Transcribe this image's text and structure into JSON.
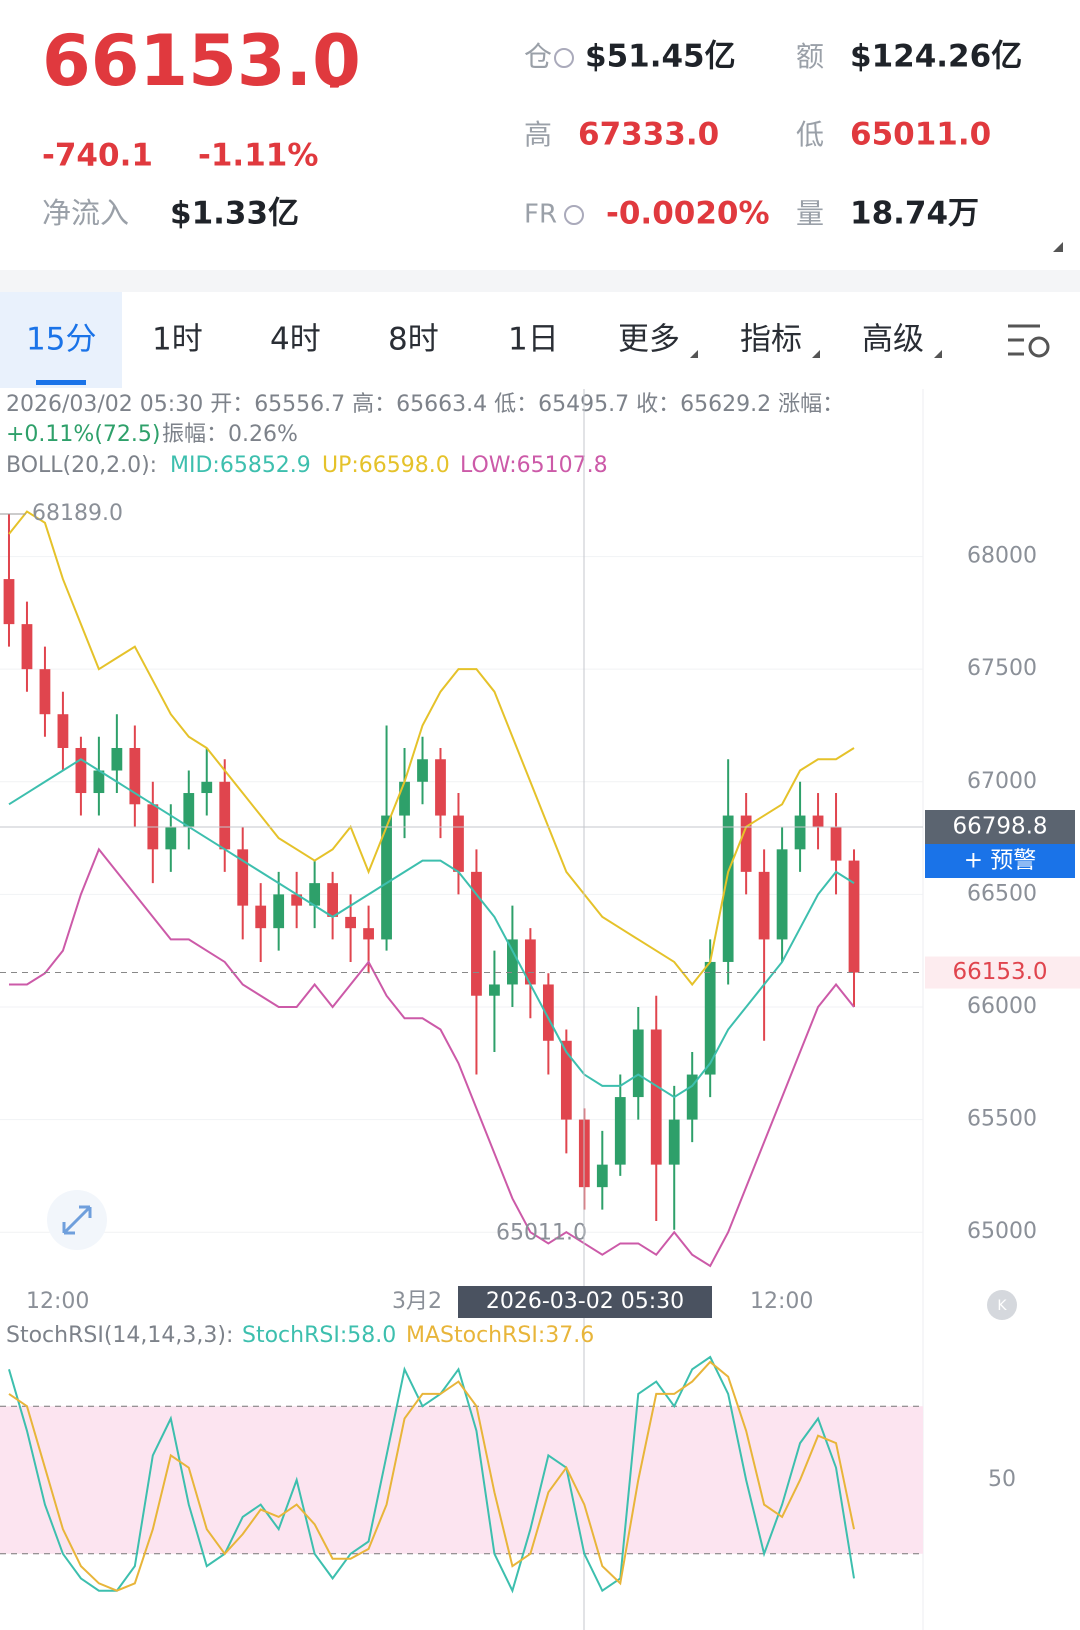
{
  "header": {
    "price": "66153.0",
    "change": "-740.1",
    "change_pct": "-1.11%",
    "inflow_label": "净流入",
    "inflow": "$1.33亿",
    "stats": [
      {
        "label": "仓",
        "value": "$51.45亿"
      },
      {
        "label": "额",
        "value": "$124.26亿"
      },
      {
        "label": "高",
        "value": "67333.0"
      },
      {
        "label": "低",
        "value": "65011.0"
      },
      {
        "label": "FR",
        "value": "-0.0020%"
      },
      {
        "label": "量",
        "value": "18.74万"
      }
    ]
  },
  "tabs": [
    "15分",
    "1时",
    "4时",
    "8时",
    "1日",
    "更多",
    "指标",
    "高级"
  ],
  "info": {
    "line1": "2026/03/02 05:30 开：65556.7 高：65663.4 低：65495.7 收：65629.2 涨幅：",
    "change": "+0.11%(72.5)",
    "amplitude": "振幅：0.26%",
    "boll_title": "BOLL(20,2.0):"
  },
  "markers": {
    "high": "68189.0",
    "low": "65011.0",
    "cursor_price": "66798.8",
    "alert": "+ 预警",
    "last_price": "66153.0"
  },
  "x_labels": [
    "12:00",
    "3月2",
    "2026-03-02 05:30",
    "12:00"
  ],
  "chart_data": [
    {
      "type": "candlestick",
      "up_color": "#2ea06a",
      "down_color": "#e0454e",
      "ylim": [
        64770,
        68300
      ],
      "yticks": [
        65000,
        65500,
        66000,
        66500,
        67000,
        67500,
        68000
      ],
      "grid": true,
      "open": [
        67900,
        67700,
        67500,
        67300,
        67150,
        66950,
        67050,
        67150,
        66900,
        66700,
        66800,
        66950,
        67000,
        66700,
        66450,
        66350,
        66500,
        66450,
        66550,
        66400,
        66350,
        66300,
        66850,
        67000,
        67100,
        66850,
        66600,
        66050,
        66100,
        66300,
        66100,
        65850,
        65500,
        65200,
        65300,
        65600,
        65900,
        65300,
        65500,
        65700,
        66200,
        66850,
        66600,
        66300,
        66700,
        66850,
        66800,
        66650
      ],
      "high": [
        68189,
        67800,
        67600,
        67400,
        67200,
        67200,
        67300,
        67250,
        67000,
        66900,
        67050,
        67150,
        67100,
        66800,
        66550,
        66600,
        66600,
        66650,
        66600,
        66500,
        66450,
        67250,
        67150,
        67200,
        67150,
        66950,
        66700,
        66250,
        66450,
        66350,
        66150,
        65900,
        65550,
        65450,
        65700,
        66000,
        66050,
        65650,
        65800,
        66300,
        67100,
        66950,
        66700,
        66800,
        67000,
        66950,
        66950,
        66700
      ],
      "low": [
        67600,
        67400,
        67200,
        67050,
        66850,
        66850,
        66950,
        66800,
        66550,
        66600,
        66700,
        66850,
        66600,
        66300,
        66200,
        66250,
        66350,
        66350,
        66300,
        66200,
        66150,
        66250,
        66750,
        66900,
        66750,
        66500,
        65700,
        65800,
        66000,
        65950,
        65700,
        65350,
        65100,
        65100,
        65250,
        65500,
        65050,
        65011,
        65400,
        65600,
        66100,
        66500,
        65850,
        66200,
        66600,
        66700,
        66500,
        66000
      ],
      "close": [
        67700,
        67500,
        67300,
        67150,
        66950,
        67050,
        67150,
        66900,
        66700,
        66800,
        66950,
        67000,
        66700,
        66450,
        66350,
        66500,
        66450,
        66550,
        66400,
        66350,
        66300,
        66850,
        67000,
        67100,
        66850,
        66600,
        66050,
        66100,
        66300,
        66100,
        65850,
        65500,
        65200,
        65300,
        65600,
        65900,
        65300,
        65500,
        65700,
        66200,
        66850,
        66600,
        66300,
        66700,
        66850,
        66800,
        66650,
        66153
      ],
      "series": [
        {
          "name": "MID:65852.9",
          "color": "#3dbfae",
          "values": [
            66900,
            66950,
            67000,
            67050,
            67100,
            67050,
            67000,
            66950,
            66900,
            66850,
            66800,
            66750,
            66700,
            66650,
            66600,
            66550,
            66500,
            66450,
            66400,
            66450,
            66500,
            66550,
            66600,
            66650,
            66650,
            66600,
            66500,
            66400,
            66250,
            66100,
            65950,
            65800,
            65700,
            65650,
            65650,
            65700,
            65650,
            65600,
            65650,
            65750,
            65900,
            66000,
            66100,
            66200,
            66350,
            66500,
            66600,
            66550
          ]
        },
        {
          "name": "UP:66598.0",
          "color": "#e5c22a",
          "values": [
            68100,
            68200,
            68150,
            67900,
            67700,
            67500,
            67550,
            67600,
            67450,
            67300,
            67200,
            67150,
            67050,
            66950,
            66850,
            66750,
            66700,
            66650,
            66700,
            66800,
            66600,
            66800,
            67000,
            67250,
            67400,
            67500,
            67500,
            67400,
            67200,
            67000,
            66800,
            66600,
            66500,
            66400,
            66350,
            66300,
            66250,
            66200,
            66100,
            66200,
            66600,
            66800,
            66850,
            66900,
            67050,
            67100,
            67100,
            67150
          ]
        },
        {
          "name": "LOW:65107.8",
          "color": "#cc5aa8",
          "values": [
            66100,
            66100,
            66150,
            66250,
            66500,
            66700,
            66600,
            66500,
            66400,
            66300,
            66300,
            66250,
            66200,
            66100,
            66050,
            66000,
            66000,
            66100,
            66000,
            66100,
            66200,
            66050,
            65950,
            65950,
            65900,
            65750,
            65550,
            65350,
            65150,
            65000,
            64950,
            65000,
            64950,
            64900,
            64950,
            64950,
            64900,
            65000,
            64900,
            64850,
            65000,
            65200,
            65400,
            65600,
            65800,
            66000,
            66100,
            66000
          ]
        }
      ]
    },
    {
      "type": "line",
      "title": "StochRSI(14,14,3,3):",
      "ylim": [
        0,
        100
      ],
      "yticks": [
        50
      ],
      "band_lines": [
        20,
        80
      ],
      "band_color": "#fce4f0",
      "series": [
        {
          "name": "StochRSI:58.0",
          "color": "#3dbfae",
          "values": [
            95,
            70,
            40,
            20,
            10,
            5,
            5,
            15,
            60,
            75,
            40,
            15,
            20,
            35,
            40,
            30,
            50,
            20,
            10,
            20,
            25,
            60,
            95,
            80,
            85,
            95,
            70,
            20,
            5,
            30,
            60,
            55,
            20,
            5,
            10,
            85,
            90,
            80,
            95,
            100,
            85,
            50,
            20,
            40,
            65,
            75,
            55,
            10
          ]
        },
        {
          "name": "MAStochRSI:37.6",
          "color": "#e8b53a",
          "values": [
            85,
            80,
            55,
            30,
            15,
            8,
            5,
            8,
            30,
            60,
            55,
            30,
            20,
            28,
            38,
            35,
            40,
            32,
            18,
            18,
            22,
            40,
            75,
            85,
            85,
            90,
            80,
            45,
            15,
            20,
            45,
            55,
            40,
            15,
            8,
            50,
            85,
            85,
            90,
            98,
            92,
            70,
            40,
            35,
            50,
            68,
            65,
            30
          ]
        }
      ]
    }
  ]
}
